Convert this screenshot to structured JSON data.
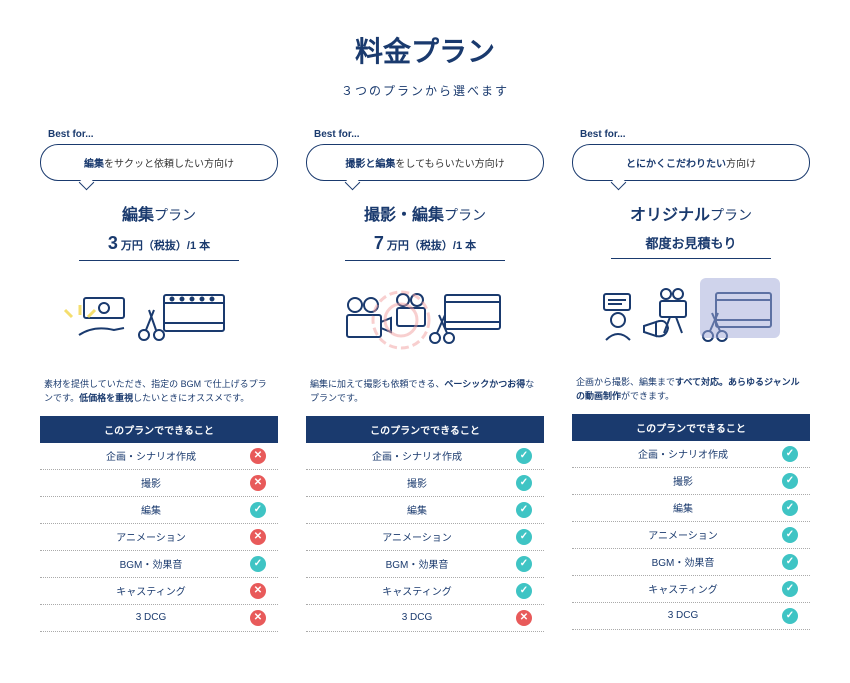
{
  "header": {
    "title": "料金プラン",
    "subtitle": "３つのプランから選べます"
  },
  "bestForLabel": "Best for...",
  "featuresHeader": "このプランでできること",
  "featureLabels": [
    "企画・シナリオ作成",
    "撮影",
    "編集",
    "アニメーション",
    "BGM・効果音",
    "キャスティング",
    "3 DCG"
  ],
  "plans": [
    {
      "bubbleBold": "編集",
      "bubbleRest": "をサクッと依頼したい方向け",
      "nameBold": "編集",
      "nameLight": "プラン",
      "priceNum": "3",
      "priceUnit": " 万円（税抜）/1 本",
      "priceAlt": "",
      "descParts": [
        "素材を提供していただき、指定の BGM で仕上げるプランです。",
        "低価格を重視",
        "したいときにオススメです。"
      ],
      "features": [
        false,
        false,
        true,
        false,
        true,
        false,
        false
      ]
    },
    {
      "bubbleBold": "撮影と編集",
      "bubbleRest": "をしてもらいたい方向け",
      "nameBold": "撮影・編集",
      "nameLight": "プラン",
      "priceNum": "7",
      "priceUnit": " 万円（税抜）/1 本",
      "priceAlt": "",
      "descParts": [
        "編集に加えて撮影も依頼できる、",
        "ベーシックかつお得",
        "なプランです。"
      ],
      "features": [
        true,
        true,
        true,
        true,
        true,
        true,
        false
      ]
    },
    {
      "bubbleBold": "とにかくこだわりたい",
      "bubbleRest": "方向け",
      "nameBold": "オリジナル",
      "nameLight": "プラン",
      "priceNum": "",
      "priceUnit": "",
      "priceAlt": "都度お見積もり",
      "descParts": [
        "企画から撮影、編集まで",
        "すべて対応。あらゆるジャンルの動画制作",
        "ができます。"
      ],
      "features": [
        true,
        true,
        true,
        true,
        true,
        true,
        true
      ]
    }
  ],
  "colors": {
    "primary": "#1a3a6e",
    "yes": "#3fc4c4",
    "no": "#e85a5a",
    "accentYellow": "#f2d64b",
    "accentPink": "#f2a0a0",
    "accentBlue": "#9fa8d8"
  }
}
